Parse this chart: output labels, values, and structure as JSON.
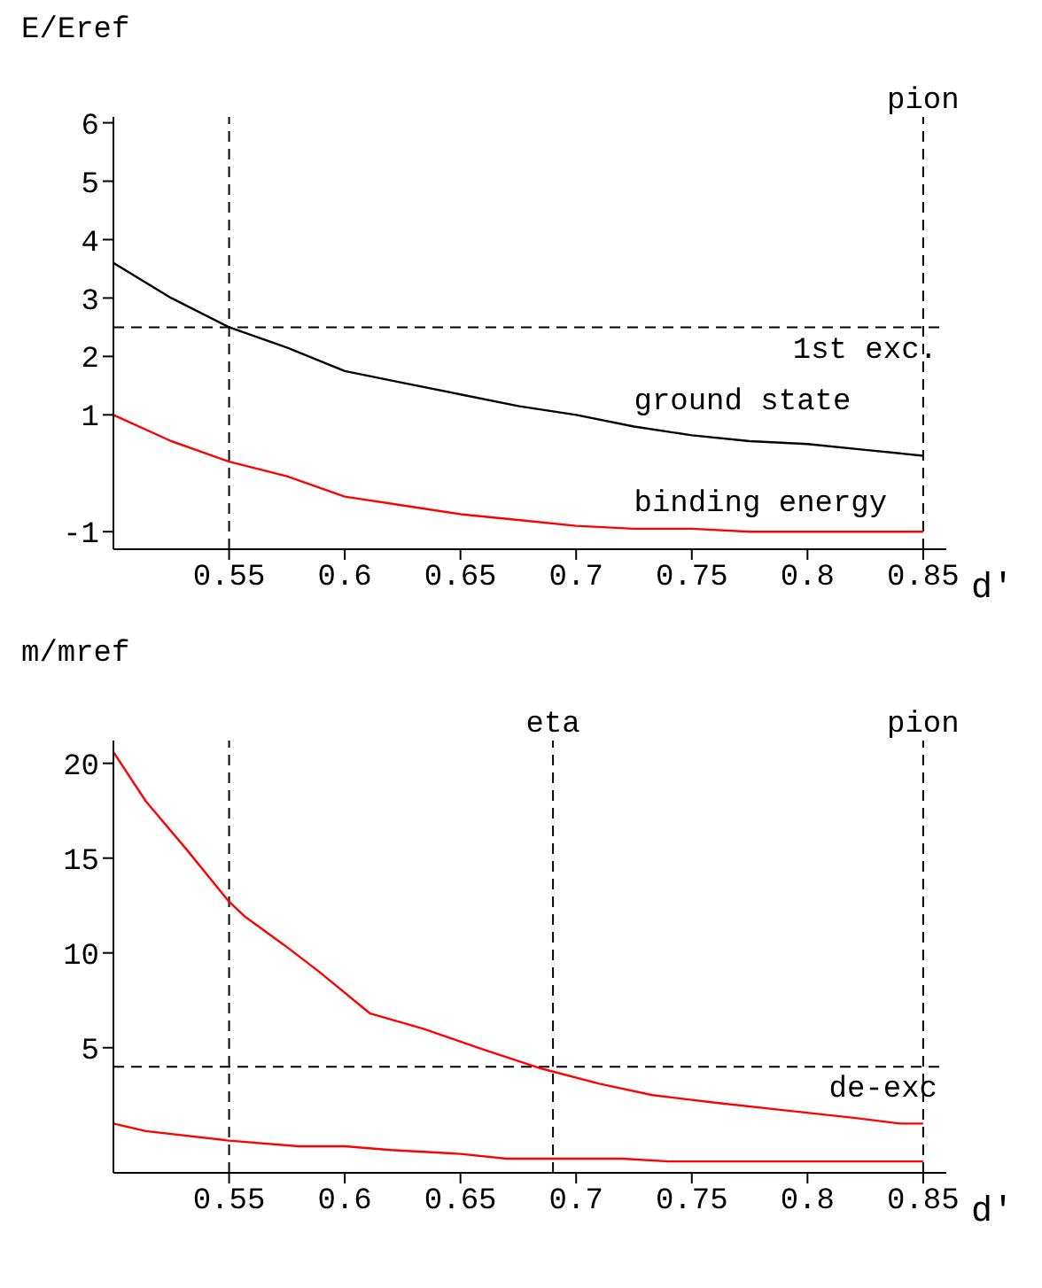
{
  "chart_data": [
    {
      "type": "line",
      "ylabel": "E/Eref",
      "xlabel": "d'",
      "xlim": [
        0.5,
        0.86
      ],
      "xticks": [
        0.55,
        0.6,
        0.65,
        0.7,
        0.75,
        0.8,
        0.85
      ],
      "ylim": [
        -1.3,
        6.1
      ],
      "yticks": [
        -1,
        1,
        2,
        3,
        4,
        5,
        6
      ],
      "grid": false,
      "line_style": "solid",
      "marker": "none",
      "series": [
        {
          "name": "ground state",
          "color": "#000000",
          "x": [
            0.5,
            0.525,
            0.55,
            0.575,
            0.6,
            0.625,
            0.65,
            0.675,
            0.7,
            0.725,
            0.75,
            0.775,
            0.8,
            0.825,
            0.85
          ],
          "values": [
            3.6,
            3.0,
            2.5,
            2.15,
            1.75,
            1.55,
            1.35,
            1.15,
            1.0,
            0.8,
            0.65,
            0.55,
            0.5,
            0.4,
            0.3
          ]
        },
        {
          "name": "binding energy",
          "color": "#ff0000",
          "x": [
            0.5,
            0.525,
            0.55,
            0.575,
            0.6,
            0.625,
            0.65,
            0.675,
            0.7,
            0.725,
            0.75,
            0.775,
            0.8,
            0.825,
            0.85
          ],
          "values": [
            1.0,
            0.55,
            0.2,
            -0.05,
            -0.4,
            -0.55,
            -0.7,
            -0.8,
            -0.9,
            -0.95,
            -0.95,
            -1.0,
            -1.0,
            -1.0,
            -1.0
          ]
        }
      ],
      "ref_lines": [
        {
          "axis": "x",
          "value": 0.55,
          "line_style": "dashed"
        },
        {
          "axis": "y",
          "value": 2.5,
          "label": "1st exc.",
          "line_style": "dashed"
        },
        {
          "axis": "x",
          "value": 0.85,
          "label": "pion",
          "line_style": "dashed"
        }
      ]
    },
    {
      "type": "line",
      "ylabel": "m/mref",
      "xlabel": "d'",
      "xlim": [
        0.5,
        0.86
      ],
      "xticks": [
        0.55,
        0.6,
        0.65,
        0.7,
        0.75,
        0.8,
        0.85
      ],
      "ylim": [
        -1.6,
        21.2
      ],
      "yticks": [
        5,
        10,
        15,
        20
      ],
      "grid": false,
      "line_style": "solid",
      "marker": "none",
      "series": [
        {
          "color": "#ff0000",
          "x": [
            0.5,
            0.514,
            0.532,
            0.55,
            0.557,
            0.574,
            0.589,
            0.611,
            0.634,
            0.66,
            0.685,
            0.71,
            0.733,
            0.76,
            0.79,
            0.82,
            0.84,
            0.85
          ],
          "values": [
            20.6,
            18.0,
            15.4,
            12.7,
            11.9,
            10.4,
            9.0,
            6.8,
            6.0,
            4.9,
            3.9,
            3.1,
            2.5,
            2.1,
            1.7,
            1.3,
            1.0,
            1.0
          ]
        },
        {
          "color": "#ff0000",
          "x": [
            0.5,
            0.514,
            0.55,
            0.58,
            0.6,
            0.62,
            0.65,
            0.67,
            0.72,
            0.74,
            0.8,
            0.85
          ],
          "values": [
            1.0,
            0.6,
            0.1,
            -0.2,
            -0.2,
            -0.4,
            -0.6,
            -0.85,
            -0.85,
            -1.0,
            -1.0,
            -1.0
          ]
        }
      ],
      "ref_lines": [
        {
          "axis": "x",
          "value": 0.55,
          "line_style": "dashed"
        },
        {
          "axis": "y",
          "value": 4,
          "label": "de-exc",
          "line_style": "dashed"
        },
        {
          "axis": "x",
          "value": 0.69,
          "label": "eta",
          "line_style": "dashed"
        },
        {
          "axis": "x",
          "value": 0.85,
          "label": "pion",
          "line_style": "dashed"
        }
      ]
    }
  ]
}
